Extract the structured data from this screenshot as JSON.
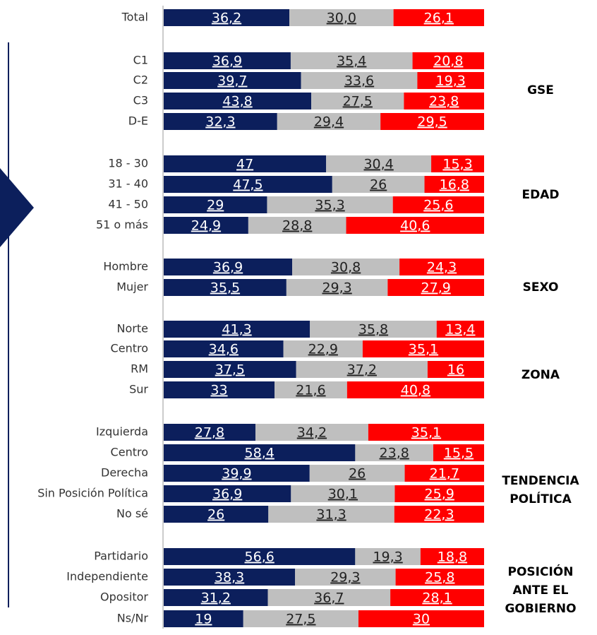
{
  "chart_data": {
    "type": "bar",
    "orientation": "horizontal",
    "stacked": "percent",
    "categories": [
      "Total",
      "C1",
      "C2",
      "C3",
      "D-E",
      "18 - 30",
      "31 - 40",
      "41 - 50",
      "51 o más",
      "Hombre",
      "Mujer",
      "Norte",
      "Centro",
      "RM",
      "Sur",
      "Izquierda",
      "Centro ",
      "Derecha",
      "Sin Posición Política",
      "No sé",
      "Partidario",
      "Independiente",
      "Opositor",
      "Ns/Nr"
    ],
    "series": [
      {
        "color": "#0c1f5c",
        "values": [
          36.2,
          36.9,
          39.7,
          43.8,
          32.3,
          47,
          47.5,
          29,
          24.9,
          36.9,
          35.5,
          41.3,
          34.6,
          37.5,
          33,
          27.8,
          58.4,
          39.9,
          36.9,
          26,
          56.6,
          38.3,
          31.2,
          19
        ],
        "value_labels": [
          "36,2",
          "36,9",
          "39,7",
          "43,8",
          "32,3",
          "47",
          "47,5",
          "29",
          "24,9",
          "36,9",
          "35,5",
          "41,3",
          "34,6",
          "37,5",
          "33",
          "27,8",
          "58,4",
          "39,9",
          "36,9",
          "26",
          "56,6",
          "38,3",
          "31,2",
          "19"
        ]
      },
      {
        "color": "#bfbfbf",
        "values": [
          30.0,
          35.4,
          33.6,
          27.5,
          29.4,
          30.4,
          26,
          35.3,
          28.8,
          30.8,
          29.3,
          35.8,
          22.9,
          37.2,
          21.6,
          34.2,
          23.8,
          26,
          30.1,
          31.3,
          19.3,
          29.3,
          36.7,
          27.5
        ],
        "value_labels": [
          "30,0",
          "35,4",
          "33,6",
          "27,5",
          "29,4",
          "30,4",
          "26",
          "35,3",
          "28,8",
          "30,8",
          "29,3",
          "35,8",
          "22,9",
          "37,2",
          "21,6",
          "34,2",
          "23,8",
          "26",
          "30,1",
          "31,3",
          "19,3",
          "29,3",
          "36,7",
          "27,5"
        ]
      },
      {
        "color": "#ff0000",
        "values": [
          26.1,
          20.8,
          19.3,
          23.8,
          29.5,
          15.3,
          16.8,
          25.6,
          40.6,
          24.3,
          27.9,
          13.4,
          35.1,
          16,
          40.8,
          35.1,
          15.5,
          21.7,
          25.9,
          22.3,
          18.8,
          25.8,
          28.1,
          30
        ],
        "value_labels": [
          "26,1",
          "20,8",
          "19,3",
          "23,8",
          "29,5",
          "15,3",
          "16,8",
          "25,6",
          "40,6",
          "24,3",
          "27,9",
          "13,4",
          "35,1",
          "16",
          "40,8",
          "35,1",
          "15,5",
          "21,7",
          "25,9",
          "22,3",
          "18,8",
          "25,8",
          "28,1",
          "30"
        ]
      }
    ],
    "annotations": [
      [
        "GSE"
      ],
      [
        "EDAD"
      ],
      [
        "SEXO"
      ],
      [
        "ZONA"
      ],
      [
        "TENDENCIA",
        "POLÍTICA"
      ],
      [
        "POSICIÓN",
        "ANTE EL",
        "GOBIERNO"
      ]
    ]
  }
}
